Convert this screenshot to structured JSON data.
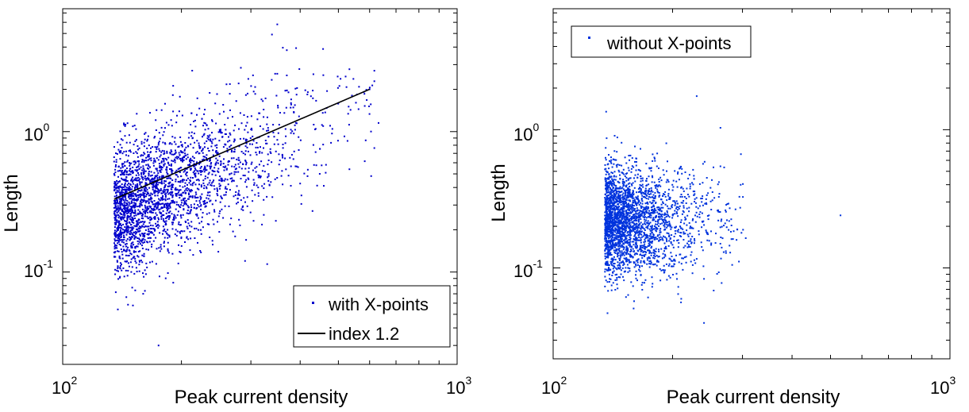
{
  "chart_data": [
    {
      "type": "scatter",
      "panel": "left",
      "title": "",
      "xlabel": "Peak current density",
      "ylabel": "Length",
      "xscale": "log",
      "yscale": "log",
      "xlim": [
        100,
        1000
      ],
      "ylim": [
        0.022,
        7.5
      ],
      "x_tick_labels": [
        {
          "base": "10",
          "exp": "2"
        },
        {
          "base": "10",
          "exp": "3"
        }
      ],
      "y_tick_labels": [
        {
          "base": "10",
          "exp": "0"
        },
        {
          "base": "10",
          "exp": "-1"
        }
      ],
      "legend_position": "bottom-right",
      "series": [
        {
          "name": "with X-points",
          "kind": "points",
          "color": "#0000cc",
          "count": 2600,
          "x_range": [
            135,
            720
          ],
          "y_range": [
            0.03,
            5.8
          ],
          "outliers": [
            {
              "x": 175,
              "y": 0.03
            },
            {
              "x": 350,
              "y": 5.8
            },
            {
              "x": 600,
              "y": 2.0
            },
            {
              "x": 370,
              "y": 3.8
            },
            {
              "x": 290,
              "y": 0.12
            },
            {
              "x": 160,
              "y": 0.07
            }
          ]
        },
        {
          "name": "index 1.2",
          "kind": "line",
          "color": "#000000",
          "x": [
            135,
            600
          ],
          "y": [
            0.33,
            2.0
          ]
        }
      ]
    },
    {
      "type": "scatter",
      "panel": "right",
      "title": "",
      "xlabel": "Peak current density",
      "ylabel": "Length",
      "xscale": "log",
      "yscale": "log",
      "xlim": [
        100,
        1000
      ],
      "ylim": [
        0.022,
        7.5
      ],
      "x_tick_labels": [
        {
          "base": "10",
          "exp": "2"
        },
        {
          "base": "10",
          "exp": "3"
        }
      ],
      "y_tick_labels": [
        {
          "base": "10",
          "exp": "0"
        },
        {
          "base": "10",
          "exp": "-1"
        }
      ],
      "legend_position": "top-left",
      "series": [
        {
          "name": "without X-points",
          "kind": "points",
          "color": "#0033dd",
          "count": 2600,
          "x_range": [
            135,
            530
          ],
          "y_range": [
            0.04,
            1.75
          ],
          "outliers": [
            {
              "x": 530,
              "y": 0.24
            },
            {
              "x": 136,
              "y": 1.35
            },
            {
              "x": 230,
              "y": 1.75
            },
            {
              "x": 240,
              "y": 0.04
            }
          ]
        }
      ]
    }
  ]
}
